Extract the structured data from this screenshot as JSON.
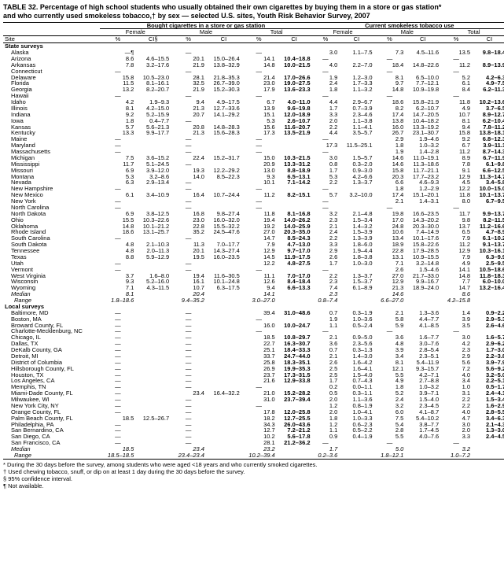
{
  "title_line1": "TABLE 32. Percentage of high school students who usually obtained their own cigarettes by buying them in a store or gas station*",
  "title_line2": "and who currently used smokeless tobacco,† by sex — selected U.S. sites, Youth Risk Behavior Survey, 2007",
  "group_headers": {
    "g1": "Bought cigarettes in a store or gas station",
    "g2": "Current smokeless tobacco use"
  },
  "sub_headers": {
    "female": "Female",
    "male": "Male",
    "total": "Total"
  },
  "col_headers": {
    "site": "Site",
    "pct": "%",
    "ci": "CI§",
    "ci_plain": "CI"
  },
  "sections": {
    "state": "State surveys",
    "local": "Local surveys"
  },
  "median_label": "Median",
  "range_label": "Range",
  "footnotes": [
    "* During the 30 days before the survey, among students who were aged <18 years and who currently smoked cigarettes.",
    "† Used chewing tobacco, snuff, or dip on at least 1 day during the 30 days before the survey.",
    "§ 95% confidence interval.",
    "¶ Not available."
  ],
  "state_rows": [
    {
      "site": "Alaska",
      "v": [
        "—¶",
        "",
        "—",
        "",
        "—",
        "",
        "3.0",
        "1.1–7.5",
        "7.3",
        "4.5–11.6",
        "13.5",
        "9.8–18.4",
        "10.4",
        "7.4–14.6"
      ]
    },
    {
      "site": "Arizona",
      "v": [
        "8.6",
        "4.6–15.5",
        "20.1",
        "15.0–26.4",
        "14.1",
        "10.4–18.8",
        "—",
        "",
        "—",
        "",
        "—",
        "",
        "—",
        ""
      ]
    },
    {
      "site": "Arkansas",
      "v": [
        "7.8",
        "3.2–17.6",
        "21.9",
        "13.8–32.9",
        "14.8",
        "10.0–21.5",
        "4.0",
        "2.2–7.0",
        "18.4",
        "14.8–22.6",
        "11.2",
        "8.9–13.9",
        "",
        ""
      ]
    },
    {
      "site": "Connecticut",
      "v": [
        "—",
        "",
        "—",
        "",
        "—",
        "",
        "—",
        "",
        "—",
        "",
        "—",
        "",
        "—",
        "",
        "—",
        ""
      ]
    },
    {
      "site": "Delaware",
      "v": [
        "15.8",
        "10.5–23.0",
        "28.1",
        "21.8–35.3",
        "21.4",
        "17.0–26.6",
        "1.9",
        "1.2–3.0",
        "8.1",
        "6.5–10.0",
        "5.2",
        "4.2–6.3",
        "",
        ""
      ]
    },
    {
      "site": "Florida",
      "v": [
        "11.5",
        "8.1–16.1",
        "32.5",
        "26.7–39.0",
        "23.0",
        "19.0–27.5",
        "2.4",
        "1.7–3.3",
        "9.7",
        "7.7–12.1",
        "6.1",
        "4.9–7.5",
        "",
        ""
      ]
    },
    {
      "site": "Georgia",
      "v": [
        "13.2",
        "8.2–20.7",
        "21.9",
        "15.2–30.3",
        "17.9",
        "13.6–23.3",
        "1.8",
        "1.1–3.2",
        "14.8",
        "10.9–19.8",
        "8.4",
        "6.2–11.3",
        "",
        ""
      ]
    },
    {
      "site": "Hawaii",
      "v": [
        "—",
        "",
        "—",
        "",
        "—",
        "",
        "—",
        "",
        "—",
        "",
        "—",
        "",
        "—",
        "",
        "—",
        ""
      ]
    },
    {
      "site": "Idaho",
      "v": [
        "4.2",
        "1.9–9.3",
        "9.4",
        "4.9–17.5",
        "6.7",
        "4.0–11.0",
        "4.4",
        "2.9–6.7",
        "18.6",
        "15.8–21.9",
        "11.8",
        "10.2–13.6",
        "",
        ""
      ]
    },
    {
      "site": "Illinois",
      "v": [
        "8.1",
        "4.2–15.0",
        "21.3",
        "12.7–33.6",
        "13.9",
        "9.6–19.8",
        "1.7",
        "0.7–3.9",
        "8.2",
        "6.2–10.7",
        "4.9",
        "3.7–6.5",
        "",
        ""
      ]
    },
    {
      "site": "Indiana",
      "v": [
        "9.2",
        "5.2–15.9",
        "20.7",
        "14.1–29.2",
        "15.1",
        "12.0–18.9",
        "3.3",
        "2.3–4.6",
        "17.4",
        "14.7–20.5",
        "10.7",
        "8.9–12.7",
        "",
        ""
      ]
    },
    {
      "site": "Iowa",
      "v": [
        "1.8",
        "0.4–7.7",
        "—",
        "",
        "5.3",
        "2.6–10.7",
        "2.0",
        "1.1–3.8",
        "13.8",
        "10.4–18.2",
        "8.1",
        "6.2–10.4",
        "",
        ""
      ]
    },
    {
      "site": "Kansas",
      "v": [
        "5.7",
        "5.6–21.3",
        "20.8",
        "14.8–28.3",
        "15.6",
        "11.6–20.7",
        "2.2",
        "1.1–4.1",
        "16.0",
        "13.3–19.2",
        "9.4",
        "7.8–11.2",
        "",
        ""
      ]
    },
    {
      "site": "Kentucky",
      "v": [
        "13.3",
        "9.9–17.7",
        "21.3",
        "15.6–28.3",
        "17.3",
        "13.5–21.9",
        "4.4",
        "3.5–5.7",
        "26.7",
        "23.1–30.7",
        "15.8",
        "13.8–18.1",
        "",
        ""
      ]
    },
    {
      "site": "Maine",
      "v": [
        "—",
        "",
        "—",
        "",
        "—",
        "",
        "—",
        "",
        "2.9",
        "1.9–4.6",
        "9.2",
        "6.8–12.3",
        "6.2",
        "4.6–8.3"
      ]
    },
    {
      "site": "Maryland",
      "v": [
        "—",
        "",
        "—",
        "",
        "—",
        "",
        "17.3",
        "11.5–25.1",
        "1.8",
        "1.0–3.2",
        "6.7",
        "3.9–11.1",
        "4.2",
        "2.7–6.6"
      ]
    },
    {
      "site": "Massachusetts",
      "v": [
        "—",
        "",
        "—",
        "",
        "—",
        "",
        "—",
        "",
        "1.9",
        "1.4–2.8",
        "11.2",
        "8.7–14.3",
        "6.7",
        "5.2–8.5"
      ]
    },
    {
      "site": "Michigan",
      "v": [
        "7.5",
        "3.6–15.2",
        "22.4",
        "15.2–31.7",
        "15.0",
        "10.3–21.5",
        "3.0",
        "1.5–5.7",
        "14.6",
        "11.0–19.1",
        "8.9",
        "6.7–11.9",
        "",
        ""
      ]
    },
    {
      "site": "Mississippi",
      "v": [
        "11.7",
        "5.1–24.5",
        "—",
        "",
        "20.9",
        "13.3–31.2",
        "0.8",
        "0.3–2.0",
        "14.6",
        "11.3–18.6",
        "7.8",
        "6.1–9.8",
        "",
        ""
      ]
    },
    {
      "site": "Missouri",
      "v": [
        "6.9",
        "3.9–12.0",
        "19.3",
        "12.2–29.2",
        "13.0",
        "8.8–18.9",
        "1.7",
        "0.9–3.0",
        "15.8",
        "11.7–21.1",
        "9.1",
        "6.6–12.5",
        "",
        ""
      ]
    },
    {
      "site": "Montana",
      "v": [
        "5.3",
        "3.2–8.6",
        "14.0",
        "8.5–22.3",
        "9.3",
        "6.5–13.1",
        "5.3",
        "4.2–6.6",
        "20.3",
        "17.7–23.2",
        "12.9",
        "11.3–14.7",
        "",
        ""
      ]
    },
    {
      "site": "Nevada",
      "v": [
        "6.3",
        "2.9–13.4",
        "—",
        "",
        "10.1",
        "7.1–14.2",
        "2.2",
        "1.3–3.7",
        "6.6",
        "4.6–9.3",
        "4.5",
        "3.4–5.8",
        "",
        ""
      ]
    },
    {
      "site": "New Hampshire",
      "v": [
        "—",
        "",
        "—",
        "",
        "—",
        "",
        "—",
        "",
        "1.8",
        "1.2–2.9",
        "12.2",
        "10.0–15.0",
        "7.2",
        "5.8–8.8"
      ]
    },
    {
      "site": "New Mexico",
      "v": [
        "6.1",
        "3.4–10.9",
        "16.4",
        "10.7–24.4",
        "11.2",
        "8.2–15.1",
        "5.7",
        "3.2–10.0",
        "17.4",
        "15.1–20.1",
        "11.8",
        "10.1–13.7",
        "",
        ""
      ]
    },
    {
      "site": "New York",
      "v": [
        "—",
        "",
        "—",
        "",
        "—",
        "",
        "—",
        "",
        "2.1",
        "1.4–3.1",
        "8.0",
        "6.7–9.5",
        "5.1",
        "4.2–6.2"
      ]
    },
    {
      "site": "North Carolina",
      "v": [
        "—",
        "",
        "—",
        "",
        "—",
        "",
        "—",
        "",
        "—",
        "",
        "—",
        "",
        "—",
        "",
        "—",
        ""
      ]
    },
    {
      "site": "North Dakota",
      "v": [
        "6.9",
        "3.8–12.5",
        "16.8",
        "9.8–27.4",
        "11.8",
        "8.1–16.8",
        "3.2",
        "2.1–4.8",
        "19.8",
        "16.6–23.5",
        "11.7",
        "9.9–13.7",
        "",
        ""
      ]
    },
    {
      "site": "Ohio",
      "v": [
        "15.5",
        "10.3–22.6",
        "23.0",
        "16.0–32.0",
        "19.4",
        "14.0–26.2",
        "2.3",
        "1.5–3.4",
        "17.0",
        "14.3–20.2",
        "9.8",
        "8.2–11.5",
        "",
        ""
      ]
    },
    {
      "site": "Oklahoma",
      "v": [
        "14.8",
        "10.1–21.2",
        "22.8",
        "15.5–32.2",
        "19.2",
        "14.0–25.9",
        "2.1",
        "1.4–3.2",
        "24.8",
        "20.3–30.0",
        "13.7",
        "11.2–16.6",
        "",
        ""
      ]
    },
    {
      "site": "Rhode Island",
      "v": [
        "18.6",
        "13.1–25.7",
        "35.2",
        "24.5–47.6",
        "27.0",
        "20.3–35.0",
        "2.4",
        "1.5–3.9",
        "10.6",
        "7.4–14.9",
        "6.5",
        "4.7–8.9",
        "",
        ""
      ]
    },
    {
      "site": "South Carolina",
      "v": [
        "—",
        "",
        "—",
        "",
        "14.7",
        "8.5–24.3",
        "2.2",
        "1.3–3.9",
        "13.4",
        "10.1–17.6",
        "7.9",
        "6.1–10.2",
        "",
        ""
      ]
    },
    {
      "site": "South Dakota",
      "v": [
        "4.8",
        "2.1–10.3",
        "11.3",
        "7.0–17.7",
        "7.9",
        "4.7–13.0",
        "3.3",
        "1.8–6.0",
        "18.9",
        "15.8–22.6",
        "11.2",
        "9.1–13.7",
        "",
        ""
      ]
    },
    {
      "site": "Tennessee",
      "v": [
        "4.8",
        "2.0–11.3",
        "20.1",
        "14.3–27.4",
        "12.9",
        "9.7–17.0",
        "2.9",
        "1.9–4.4",
        "22.8",
        "17.9–28.5",
        "12.9",
        "10.3–16.1",
        "",
        ""
      ]
    },
    {
      "site": "Texas",
      "v": [
        "8.8",
        "5.9–12.9",
        "19.5",
        "16.0–23.5",
        "14.5",
        "11.9–17.5",
        "2.6",
        "1.8–3.8",
        "13.1",
        "10.9–15.5",
        "7.9",
        "6.3–9.9",
        "",
        ""
      ]
    },
    {
      "site": "Utah",
      "v": [
        "—",
        "",
        "—",
        "",
        "12.2",
        "4.8–27.5",
        "1.7",
        "1.0–3.0",
        "7.1",
        "3.2–14.8",
        "4.9",
        "2.5–9.5",
        "",
        ""
      ]
    },
    {
      "site": "Vermont",
      "v": [
        "—",
        "",
        "—",
        "",
        "—",
        "",
        "—",
        "",
        "2.6",
        "1.5–4.6",
        "14.1",
        "10.5–18.6",
        "8.6",
        "6.3–11.7"
      ]
    },
    {
      "site": "West Virginia",
      "v": [
        "3.7",
        "1.6–8.0",
        "19.4",
        "11.6–30.5",
        "11.1",
        "7.0–17.0",
        "2.2",
        "1.3–3.7",
        "27.0",
        "21.7–33.0",
        "14.8",
        "11.8–18.3",
        "",
        ""
      ]
    },
    {
      "site": "Wisconsin",
      "v": [
        "9.3",
        "5.2–16.0",
        "16.1",
        "10.1–24.8",
        "12.6",
        "8.4–18.4",
        "2.3",
        "1.5–3.7",
        "12.9",
        "9.9–16.7",
        "7.7",
        "6.0–10.0",
        "",
        ""
      ]
    },
    {
      "site": "Wyoming",
      "v": [
        "7.1",
        "4.3–11.5",
        "10.7",
        "6.3–17.5",
        "9.4",
        "6.6–13.3",
        "7.4",
        "6.1–8.9",
        "21.3",
        "18.9–24.0",
        "14.7",
        "13.2–16.4",
        "",
        ""
      ]
    }
  ],
  "state_median": {
    "v": [
      "8.1",
      "",
      "20.4",
      "",
      "14.1",
      "",
      "2.3",
      "",
      "14.6",
      "",
      "8.6",
      ""
    ]
  },
  "state_range": {
    "v": [
      "1.8–18.6",
      "",
      "9.4–35.2",
      "",
      "3.0–27.0",
      "",
      "0.8–7.4",
      "",
      "6.6–27.0",
      "",
      "4.2–15.8",
      ""
    ]
  },
  "local_rows": [
    {
      "site": "Baltimore, MD",
      "v": [
        "—",
        "",
        "—",
        "",
        "39.4",
        "31.0–48.6",
        "0.7",
        "0.3–1.9",
        "2.1",
        "1.3–3.6",
        "1.4",
        "0.9–2.2"
      ]
    },
    {
      "site": "Boston, MA",
      "v": [
        "—",
        "",
        "—",
        "",
        "—",
        "",
        "1.9",
        "1.0–3.6",
        "5.8",
        "4.4–7.7",
        "3.9",
        "2.9–5.3"
      ]
    },
    {
      "site": "Broward County, FL",
      "v": [
        "—",
        "",
        "—",
        "",
        "16.0",
        "10.0–24.7",
        "1.1",
        "0.5–2.4",
        "5.9",
        "4.1–8.5",
        "3.5",
        "2.6–4.6"
      ]
    },
    {
      "site": "Charlotte-Mecklenburg, NC",
      "v": [
        "—",
        "",
        "—",
        "",
        "—",
        "",
        "—",
        "",
        "—",
        "",
        "—",
        "",
        "—",
        ""
      ]
    },
    {
      "site": "Chicago, IL",
      "v": [
        "—",
        "",
        "—",
        "",
        "18.5",
        "10.8–29.7",
        "2.1",
        "0.9–5.0",
        "3.6",
        "1.6–7.7",
        "3.0",
        "1.6–5.7"
      ]
    },
    {
      "site": "Dallas, TX",
      "v": [
        "—",
        "",
        "—",
        "",
        "22.7",
        "16.3–30.7",
        "3.6",
        "2.3–5.6",
        "4.8",
        "3.0–7.6",
        "4.2",
        "2.9–6.2"
      ]
    },
    {
      "site": "DeKalb County, GA",
      "v": [
        "—",
        "",
        "—",
        "",
        "25.1",
        "18.4–33.3",
        "0.7",
        "0.3–1.3",
        "3.9",
        "2.8–5.4",
        "2.3",
        "1.7–3.0"
      ]
    },
    {
      "site": "Detroit, MI",
      "v": [
        "—",
        "",
        "—",
        "",
        "33.7",
        "24.7–44.0",
        "2.1",
        "1.4–3.0",
        "3.4",
        "2.3–5.1",
        "2.9",
        "2.2–3.8"
      ]
    },
    {
      "site": "District of Columbia",
      "v": [
        "—",
        "",
        "—",
        "",
        "25.8",
        "18.3–35.1",
        "2.6",
        "1.6–4.2",
        "8.1",
        "5.4–11.9",
        "5.6",
        "3.9–7.9"
      ]
    },
    {
      "site": "Hillsborough County, FL",
      "v": [
        "—",
        "",
        "—",
        "",
        "26.9",
        "19.9–35.3",
        "2.5",
        "1.6–4.1",
        "12.1",
        "9.3–15.7",
        "7.2",
        "5.6–9.2"
      ]
    },
    {
      "site": "Houston, TX",
      "v": [
        "—",
        "",
        "—",
        "",
        "23.7",
        "17.3–31.5",
        "2.5",
        "1.5–4.0",
        "5.5",
        "4.2–7.1",
        "4.0",
        "3.2–5.0"
      ]
    },
    {
      "site": "Los Angeles, CA",
      "v": [
        "—",
        "",
        "—",
        "",
        "21.6",
        "12.9–33.8",
        "1.7",
        "0.7–4.3",
        "4.9",
        "2.7–8.8",
        "3.4",
        "2.2–5.1"
      ]
    },
    {
      "site": "Memphis, TN",
      "v": [
        "—",
        "",
        "—",
        "",
        "—",
        "",
        "0.2",
        "0.0–1.1",
        "1.8",
        "1.0–3.2",
        "1.0",
        "0.5–1.7"
      ]
    },
    {
      "site": "Miami-Dade County, FL",
      "v": [
        "—",
        "",
        "23.4",
        "16.4–32.2",
        "21.0",
        "15.2–28.2",
        "0.5",
        "0.3–1.1",
        "5.2",
        "3.9–7.1",
        "3.1",
        "2.4–4.1"
      ]
    },
    {
      "site": "Milwaukee, WI",
      "v": [
        "—",
        "",
        "—",
        "",
        "31.0",
        "23.7–39.4",
        "2.0",
        "1.1–3.6",
        "2.4",
        "1.5–4.0",
        "2.2",
        "1.5–3.4"
      ]
    },
    {
      "site": "New York City, NY",
      "v": [
        "—",
        "",
        "—",
        "",
        "—",
        "",
        "1.2",
        "0.8–1.9",
        "3.2",
        "2.3–4.5",
        "2.2",
        "1.6–2.9"
      ]
    },
    {
      "site": "Orange County, FL",
      "v": [
        "—",
        "",
        "—",
        "",
        "17.8",
        "12.0–25.8",
        "2.0",
        "1.0–4.1",
        "6.0",
        "4.1–8.7",
        "4.0",
        "2.8–5.5"
      ]
    },
    {
      "site": "Palm Beach County, FL",
      "v": [
        "18.5",
        "12.5–26.7",
        "—",
        "",
        "18.2",
        "12.7–25.5",
        "1.8",
        "1.0–3.3",
        "7.5",
        "5.4–10.2",
        "4.7",
        "3.4–6.3"
      ]
    },
    {
      "site": "Philadelphia, PA",
      "v": [
        "—",
        "",
        "—",
        "",
        "34.3",
        "26.0–43.6",
        "1.2",
        "0.6–2.3",
        "5.4",
        "3.8–7.7",
        "3.0",
        "2.1–4.3"
      ]
    },
    {
      "site": "San Bernardino, CA",
      "v": [
        "—",
        "",
        "—",
        "",
        "12.7",
        "7.2–21.2",
        "1.1",
        "0.5–2.2",
        "2.8",
        "1.7–4.5",
        "2.0",
        "1.3–3.0"
      ]
    },
    {
      "site": "San Diego, CA",
      "v": [
        "—",
        "",
        "—",
        "",
        "10.2",
        "5.6–17.8",
        "0.9",
        "0.4–1.9",
        "5.5",
        "4.0–7.6",
        "3.3",
        "2.4–4.5"
      ]
    },
    {
      "site": "San Francisco, CA",
      "v": [
        "—",
        "",
        "—",
        "",
        "28.1",
        "21.2–36.2",
        "—",
        "",
        "—",
        "",
        "—",
        ""
      ]
    }
  ],
  "local_median": {
    "v": [
      "18.5",
      "",
      "23.4",
      "",
      "23.2",
      "",
      "1.7",
      "",
      "5.0",
      "",
      "3.2",
      ""
    ]
  },
  "local_range": {
    "v": [
      "18.5–18.5",
      "",
      "23.4–23.4",
      "",
      "10.2–39.4",
      "",
      "0.2–3.6",
      "",
      "1.8–12.1",
      "",
      "1.0–7.2",
      ""
    ]
  }
}
